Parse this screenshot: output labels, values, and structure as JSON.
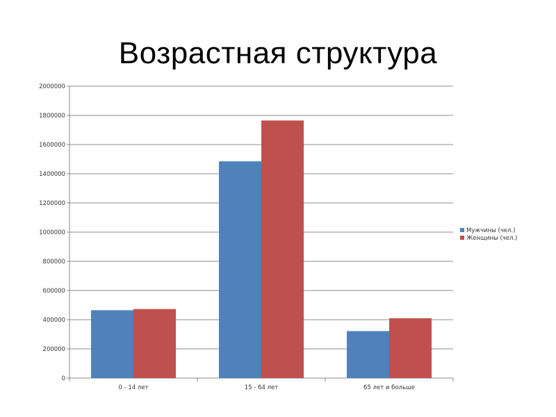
{
  "slide": {
    "title": "Возрастная структура"
  },
  "chart_data": {
    "type": "bar",
    "title": "",
    "xlabel": "",
    "ylabel": "",
    "categories": [
      "0  - 14 лет",
      "15 - 64 лет",
      "65 лет и больше"
    ],
    "series": [
      {
        "name": "Мужчины (чел.)",
        "color": "#4F81BD",
        "values": [
          465000,
          1485000,
          322000
        ]
      },
      {
        "name": "Женщины (чел.)",
        "color": "#C0504D",
        "values": [
          473000,
          1765000,
          410000
        ]
      }
    ],
    "ylim": [
      0,
      2000000
    ],
    "yticks": [
      "0",
      "200000",
      "400000",
      "600000",
      "800000",
      "1000000",
      "1200000",
      "1400000",
      "1600000",
      "1800000",
      "2000000"
    ],
    "grid": true,
    "legend": "right"
  }
}
